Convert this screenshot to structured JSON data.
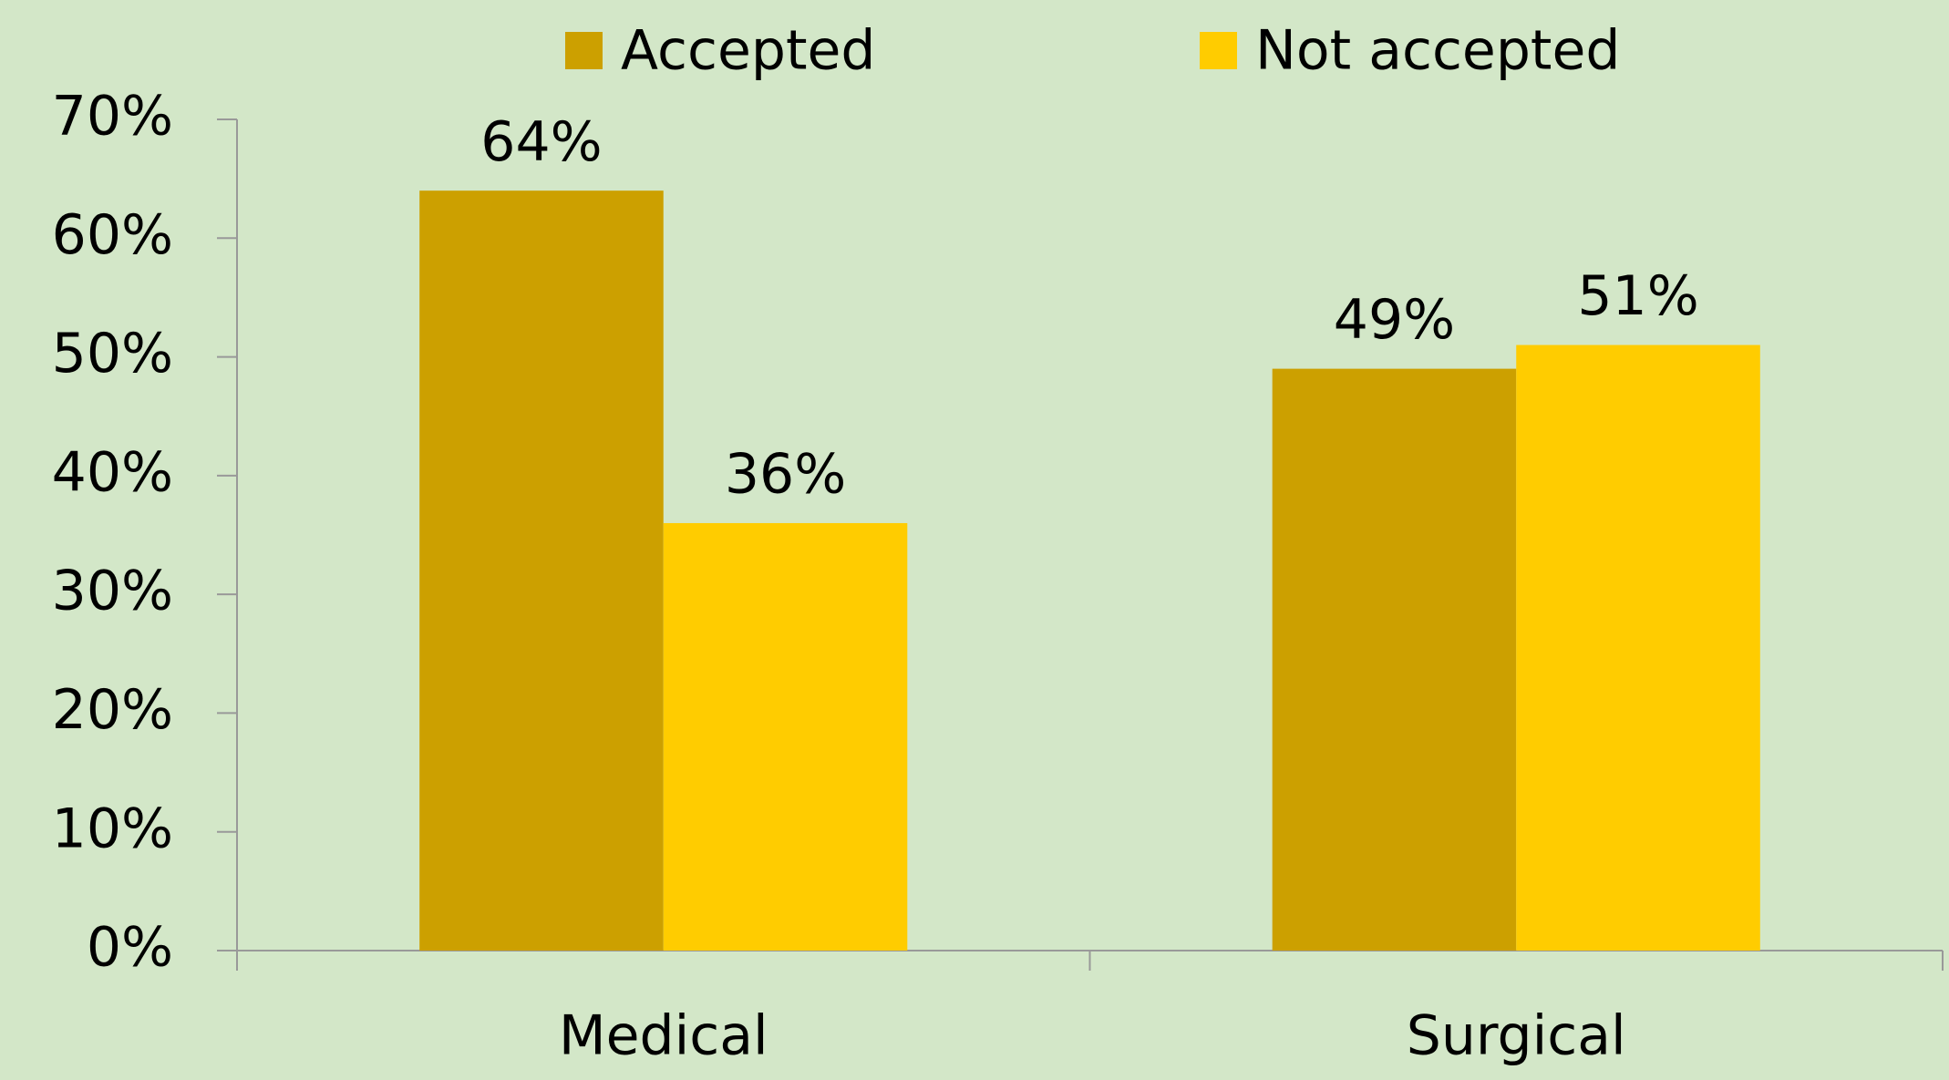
{
  "chart_data": {
    "type": "bar",
    "categories": [
      "Medical",
      "Surgical"
    ],
    "series": [
      {
        "name": "Accepted",
        "color": "#cca000",
        "values": [
          64,
          49
        ],
        "value_labels": [
          "64%",
          "49%"
        ]
      },
      {
        "name": "Not accepted",
        "color": "#ffcc00",
        "values": [
          36,
          51
        ],
        "value_labels": [
          "36%",
          "51%"
        ]
      }
    ],
    "ylim": [
      0,
      70
    ],
    "yticks": [
      {
        "value": 0,
        "label": "0%"
      },
      {
        "value": 10,
        "label": "10%"
      },
      {
        "value": 20,
        "label": "20%"
      },
      {
        "value": 30,
        "label": "30%"
      },
      {
        "value": 40,
        "label": "40%"
      },
      {
        "value": 50,
        "label": "50%"
      },
      {
        "value": 60,
        "label": "60%"
      },
      {
        "value": 70,
        "label": "70%"
      }
    ],
    "legend": "top",
    "grid": false
  }
}
